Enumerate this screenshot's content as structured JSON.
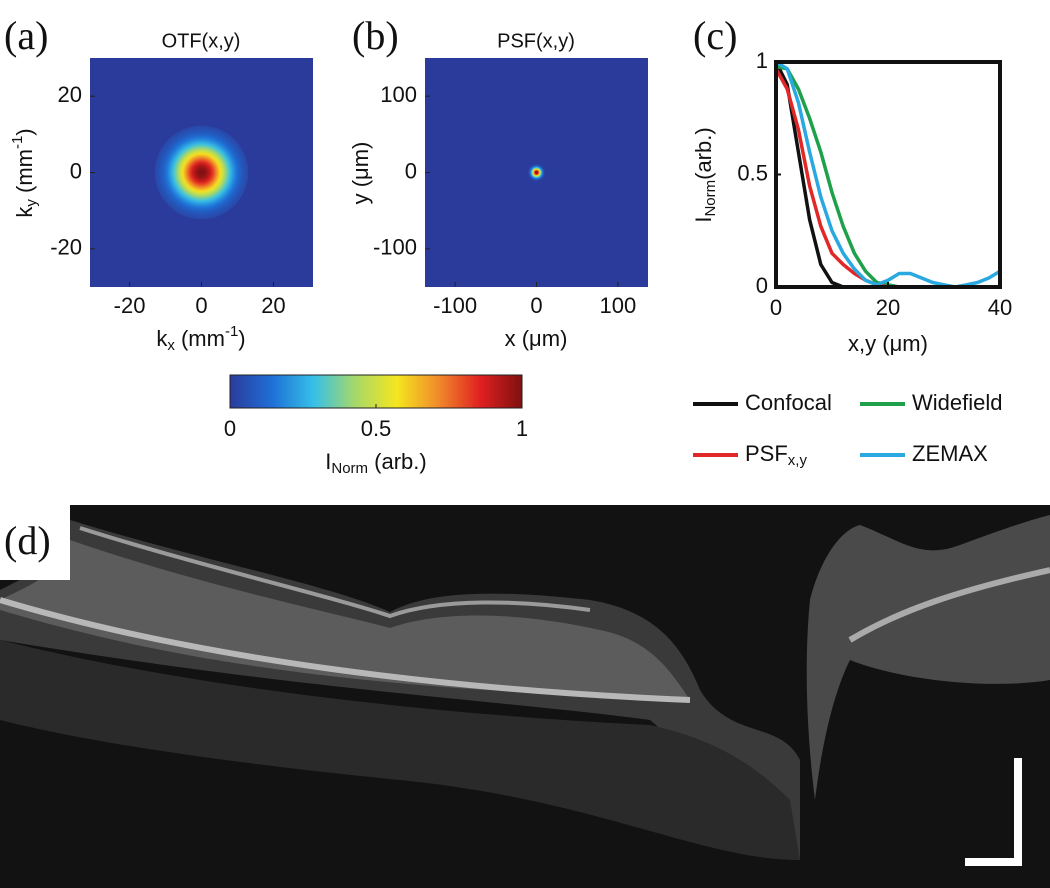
{
  "chart_data": [
    {
      "type": "heatmap",
      "label": "(a)",
      "title": "OTF(x,y)",
      "xlabel": [
        "k",
        "x",
        " (mm",
        "-1",
        ")"
      ],
      "ylabel": [
        "k",
        "y",
        " (mm",
        "-1",
        ")"
      ],
      "xlim": [
        -31,
        31
      ],
      "ylim": [
        -30,
        30
      ],
      "xticks": [
        -20,
        0,
        20
      ],
      "yticks": [
        -20,
        0,
        20
      ],
      "spot_radius": 13
    },
    {
      "type": "heatmap",
      "label": "(b)",
      "title": "PSF(x,y)",
      "xlabel": [
        "x (",
        "μm",
        ")"
      ],
      "ylabel": [
        "y (",
        "μm",
        ")"
      ],
      "xlim": [
        -137,
        137
      ],
      "ylim": [
        -150,
        150
      ],
      "xticks": [
        -100,
        0,
        100
      ],
      "yticks": [
        -100,
        0,
        100
      ],
      "spot_radius": 10
    },
    {
      "type": "line",
      "label": "(c)",
      "xlabel": "x,y (μm)",
      "ylabel": [
        "I",
        "Norm",
        "(arb.)"
      ],
      "xlim": [
        0,
        40
      ],
      "ylim": [
        0,
        1
      ],
      "xticks": [
        0,
        20,
        40
      ],
      "yticks": [
        0,
        0.5,
        1
      ],
      "x": [
        0,
        2,
        4,
        6,
        8,
        10,
        12,
        14,
        16,
        18,
        20,
        22,
        24,
        26,
        28,
        30,
        32,
        34,
        36,
        38,
        40
      ],
      "series": [
        {
          "name": "Confocal",
          "color": "#111111",
          "values": [
            1,
            0.9,
            0.6,
            0.3,
            0.1,
            0.02,
            0,
            0,
            0,
            0,
            0,
            0,
            0,
            0,
            0,
            0,
            0,
            0,
            0,
            0,
            0
          ]
        },
        {
          "name": "Widefield",
          "color": "#1fa04a",
          "values": [
            0.98,
            0.97,
            0.88,
            0.75,
            0.6,
            0.42,
            0.27,
            0.15,
            0.07,
            0.02,
            0.01,
            0,
            0,
            0,
            0,
            0,
            0,
            0,
            0,
            0,
            0
          ]
        },
        {
          "name": [
            "PSF",
            "x,y"
          ],
          "color": "#e02828",
          "values": [
            0.97,
            0.88,
            0.7,
            0.45,
            0.27,
            0.15,
            0.1,
            0.06,
            0.03,
            0.01,
            0,
            0,
            0,
            0,
            0,
            0,
            0,
            0,
            0,
            0,
            0
          ]
        },
        {
          "name": "ZEMAX",
          "color": "#2aa8e0",
          "values": [
            1,
            0.97,
            0.82,
            0.6,
            0.4,
            0.25,
            0.15,
            0.08,
            0.03,
            0.01,
            0.03,
            0.06,
            0.06,
            0.04,
            0.02,
            0.01,
            0,
            0.01,
            0.02,
            0.04,
            0.07
          ]
        }
      ]
    },
    {
      "type": "colorbar",
      "xlim": [
        0,
        1
      ],
      "xticks": [
        0,
        0.5,
        1
      ],
      "xlabel": [
        "I",
        "Norm",
        " (arb.)"
      ],
      "colors": [
        "#2b3b9b",
        "#1e6fd6",
        "#36c0e8",
        "#a6d86a",
        "#f5e61e",
        "#f08a2a",
        "#e02020",
        "#7f1010"
      ]
    },
    {
      "type": "image",
      "label": "(d)"
    }
  ]
}
